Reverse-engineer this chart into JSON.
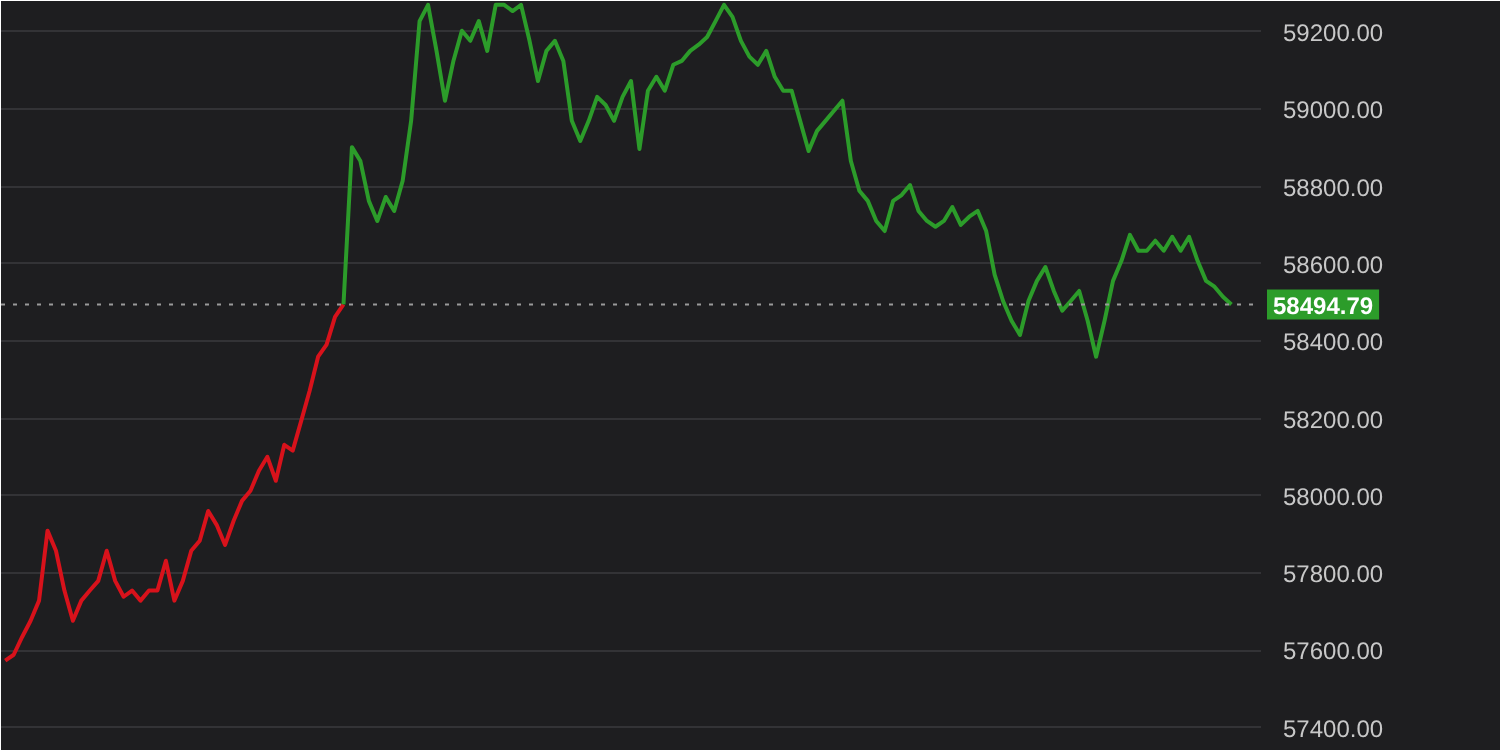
{
  "chart_data": {
    "type": "line",
    "categories": [
      null,
      null,
      null,
      null,
      null,
      null,
      null,
      null,
      null,
      null,
      null,
      null,
      null,
      null,
      null,
      null,
      null,
      null,
      null,
      null,
      null,
      null,
      null,
      null,
      null,
      null,
      null,
      null,
      null,
      null,
      null,
      null,
      null,
      null,
      null,
      null,
      null,
      null,
      null,
      null,
      null,
      null,
      null,
      null,
      null,
      null,
      null,
      null,
      null,
      null,
      null,
      null,
      null,
      null,
      null,
      null,
      null,
      null,
      null,
      null,
      null,
      null,
      null,
      null,
      null,
      null,
      null,
      null,
      null,
      null,
      null,
      null,
      null,
      null,
      null,
      null,
      null,
      null,
      null,
      null,
      null,
      null,
      null,
      null,
      null,
      null,
      null,
      null,
      null,
      null,
      null,
      null,
      null,
      null,
      null,
      null,
      null,
      null,
      null,
      null,
      null,
      null,
      null,
      null,
      null,
      null,
      null,
      null,
      null,
      null,
      null,
      null,
      null,
      null,
      null,
      null,
      null,
      null,
      null,
      null,
      null,
      null,
      null,
      null,
      null,
      null,
      null,
      null,
      null,
      null,
      null,
      null,
      null,
      null,
      null,
      null,
      null,
      null,
      null,
      null,
      null,
      null,
      null,
      null,
      null,
      null
    ],
    "series": [
      {
        "color": "#d8121b",
        "values": [
          57574,
          57589,
          57635,
          57677,
          57729,
          57910,
          57858,
          57755,
          57677,
          57729,
          57755,
          57780,
          57858,
          57780,
          57739,
          57755,
          57729,
          57755,
          57755,
          57832,
          57729,
          57780,
          57858,
          57884,
          57961,
          57925,
          57873,
          57935,
          57987,
          58013,
          58065,
          58101,
          58039,
          58132,
          58117,
          58194,
          58272,
          58360,
          58391,
          58463,
          58495,
          null,
          null,
          null,
          null,
          null,
          null,
          null,
          null,
          null,
          null,
          null,
          null,
          null,
          null,
          null,
          null,
          null,
          null,
          null,
          null,
          null,
          null,
          null,
          null,
          null,
          null,
          null,
          null,
          null,
          null,
          null,
          null,
          null,
          null,
          null,
          null,
          null,
          null,
          null,
          null,
          null,
          null,
          null,
          null,
          null,
          null,
          null,
          null,
          null,
          null,
          null,
          null,
          null,
          null,
          null,
          null,
          null,
          null,
          null,
          null,
          null,
          null,
          null,
          null,
          null,
          null,
          null,
          null,
          null,
          null,
          null,
          null,
          null,
          null,
          null,
          null,
          null,
          null,
          null,
          null,
          null,
          null,
          null,
          null,
          null,
          null,
          null,
          null,
          null,
          null,
          null,
          null,
          null,
          null,
          null,
          null,
          null,
          null,
          null,
          null,
          null,
          null,
          null,
          null,
          null
        ]
      },
      {
        "color": "#2c9c2a",
        "values": [
          null,
          null,
          null,
          null,
          null,
          null,
          null,
          null,
          null,
          null,
          null,
          null,
          null,
          null,
          null,
          null,
          null,
          null,
          null,
          null,
          null,
          null,
          null,
          null,
          null,
          null,
          null,
          null,
          null,
          null,
          null,
          null,
          null,
          null,
          null,
          null,
          null,
          null,
          null,
          null,
          58495,
          58902,
          58866,
          58763,
          58711,
          58773,
          58737,
          58815,
          58970,
          59228,
          59270,
          59151,
          59022,
          59125,
          59203,
          59177,
          59228,
          59151,
          59270,
          59270,
          59254,
          59270,
          59177,
          59073,
          59151,
          59177,
          59125,
          58970,
          58918,
          58970,
          59032,
          59011,
          58970,
          59032,
          59073,
          58897,
          59048,
          59084,
          59048,
          59115,
          59125,
          59151,
          59167,
          59187,
          59228,
          59270,
          59239,
          59177,
          59136,
          59115,
          59151,
          59084,
          59048,
          59048,
          58970,
          58892,
          58944,
          58970,
          58996,
          59022,
          58866,
          58789,
          58763,
          58711,
          58685,
          58763,
          58778,
          58804,
          58737,
          58711,
          58696,
          58711,
          58747,
          58701,
          58722,
          58737,
          58685,
          58572,
          58504,
          58453,
          58416,
          58504,
          58556,
          58592,
          58530,
          58479,
          58504,
          58530,
          58453,
          58360,
          58453,
          58556,
          58608,
          58675,
          58634,
          58634,
          58660,
          58634,
          58670,
          58634,
          58670,
          58608,
          58556,
          58541,
          58515,
          58495
        ]
      }
    ],
    "ylim": [
      57340,
      59280
    ],
    "yticks": [
      {
        "value": 57400,
        "label": "57400.00"
      },
      {
        "value": 57600,
        "label": "57600.00"
      },
      {
        "value": 57800,
        "label": "57800.00"
      },
      {
        "value": 58000,
        "label": "58000.00"
      },
      {
        "value": 58200,
        "label": "58200.00"
      },
      {
        "value": 58400,
        "label": "58400.00"
      },
      {
        "value": 58600,
        "label": "58600.00"
      },
      {
        "value": 58800,
        "label": "58800.00"
      },
      {
        "value": 59000,
        "label": "59000.00"
      },
      {
        "value": 59200,
        "label": "59200.00"
      }
    ],
    "ref_lines": [
      {
        "axis": "y",
        "value": 58494.79,
        "label": "58494.79",
        "color": "#9a9a9a",
        "line_style": "dotted"
      }
    ],
    "grid": "y",
    "tick_labels": "y"
  }
}
